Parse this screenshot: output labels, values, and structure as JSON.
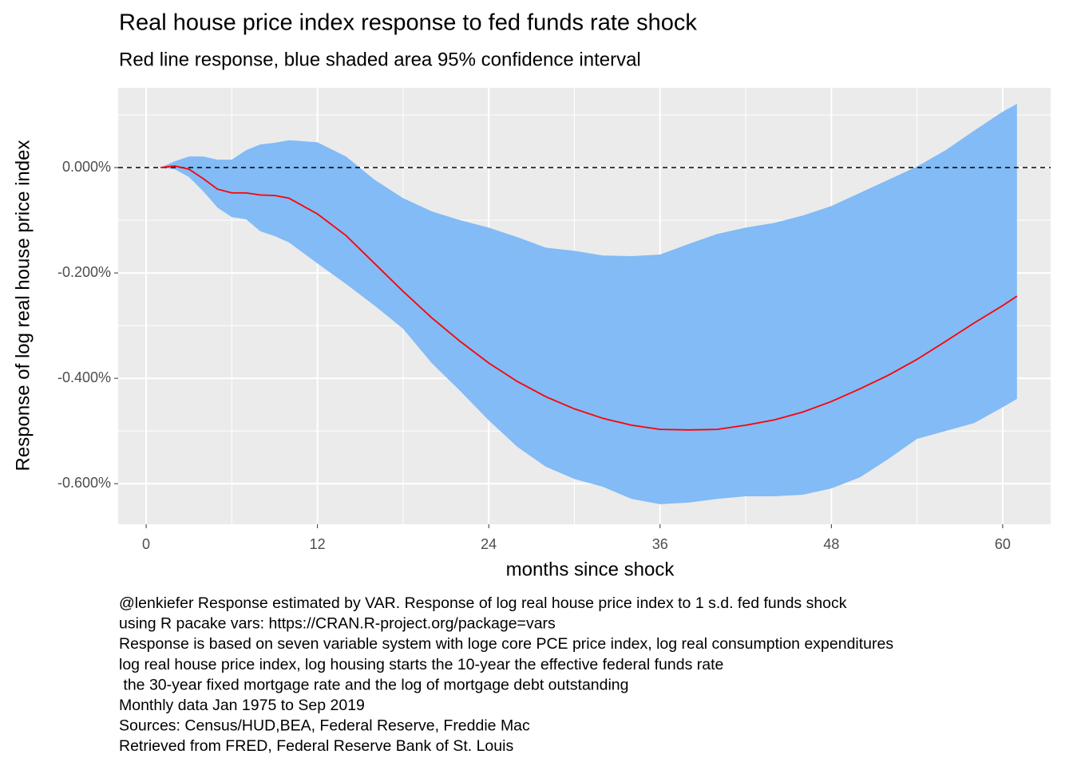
{
  "chart_data": {
    "type": "line",
    "title": "Real house price index response to fed funds rate shock",
    "subtitle": "Red line response, blue shaded area 95% confidence interval",
    "x_label": "months since shock",
    "y_label": "Response of log real house price index",
    "caption": [
      "@lenkiefer Response estimated by VAR. Response of log real house price index to 1 s.d. fed funds shock",
      "using R pacake vars: https://CRAN.R-project.org/package=vars",
      "Response is based on seven variable system with loge core PCE price index, log real consumption expenditures",
      "log real house price index, log housing starts the 10-year the effective federal funds rate",
      " the 30-year fixed mortgage rate and the log of mortgage debt outstanding",
      "Monthly data Jan 1975 to Sep 2019",
      "Sources: Census/HUD,BEA, Federal Reserve, Freddie Mac",
      "Retrieved from FRED, Federal Reserve Bank of St. Louis"
    ],
    "x": [
      1,
      2,
      3,
      4,
      5,
      6,
      7,
      8,
      9,
      10,
      12,
      14,
      16,
      18,
      20,
      22,
      24,
      26,
      28,
      30,
      32,
      34,
      36,
      38,
      40,
      42,
      44,
      46,
      48,
      50,
      52,
      54,
      56,
      58,
      60,
      61
    ],
    "series": [
      {
        "name": "response",
        "color": "#ff0000",
        "values": [
          0,
          0.003,
          -0.003,
          -0.021,
          -0.041,
          -0.048,
          -0.048,
          -0.052,
          -0.053,
          -0.058,
          -0.088,
          -0.129,
          -0.182,
          -0.235,
          -0.285,
          -0.33,
          -0.371,
          -0.406,
          -0.435,
          -0.458,
          -0.476,
          -0.489,
          -0.497,
          -0.498,
          -0.497,
          -0.489,
          -0.479,
          -0.464,
          -0.444,
          -0.42,
          -0.394,
          -0.364,
          -0.33,
          -0.295,
          -0.262,
          -0.244
        ]
      }
    ],
    "band": {
      "color": "#82bbf5",
      "upper": [
        0,
        0.012,
        0.021,
        0.021,
        0.015,
        0.015,
        0.033,
        0.044,
        0.047,
        0.052,
        0.048,
        0.021,
        -0.023,
        -0.058,
        -0.083,
        -0.1,
        -0.114,
        -0.132,
        -0.152,
        -0.158,
        -0.167,
        -0.168,
        -0.165,
        -0.145,
        -0.126,
        -0.114,
        -0.105,
        -0.091,
        -0.073,
        -0.048,
        -0.023,
        0.002,
        0.033,
        0.07,
        0.106,
        0.121
      ],
      "lower": [
        0,
        -0.003,
        -0.018,
        -0.045,
        -0.076,
        -0.094,
        -0.098,
        -0.121,
        -0.13,
        -0.142,
        -0.182,
        -0.221,
        -0.262,
        -0.306,
        -0.371,
        -0.424,
        -0.48,
        -0.53,
        -0.568,
        -0.591,
        -0.606,
        -0.629,
        -0.639,
        -0.636,
        -0.629,
        -0.624,
        -0.624,
        -0.621,
        -0.609,
        -0.588,
        -0.553,
        -0.515,
        -0.5,
        -0.485,
        -0.455,
        -0.439
      ]
    },
    "hline": 0,
    "xlim": [
      -1.96,
      63.36
    ],
    "ylim": [
      -0.677,
      0.1515
    ],
    "xticks": [
      0,
      12,
      24,
      36,
      48,
      60
    ],
    "yticks": [
      {
        "value": 0,
        "label": "0.000%"
      },
      {
        "value": -0.2,
        "label": "-0.200%"
      },
      {
        "value": -0.4,
        "label": "-0.400%"
      },
      {
        "value": -0.6,
        "label": "-0.600%"
      }
    ],
    "grid": true
  }
}
